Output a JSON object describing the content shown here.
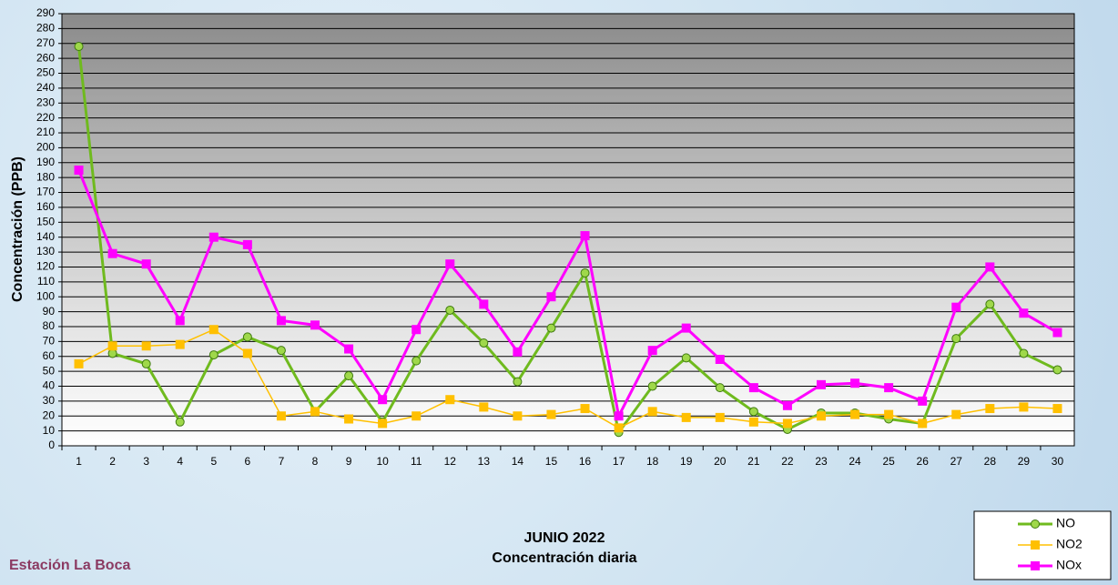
{
  "chart_data": {
    "type": "line",
    "title": "JUNIO 2022",
    "subtitle": "Concentración diaria",
    "station": "Estación La Boca",
    "y_label": "Concentración  (PPB)",
    "categories": [
      "1",
      "2",
      "3",
      "4",
      "5",
      "6",
      "7",
      "8",
      "9",
      "10",
      "11",
      "12",
      "13",
      "14",
      "15",
      "16",
      "17",
      "18",
      "19",
      "20",
      "21",
      "22",
      "23",
      "24",
      "25",
      "26",
      "27",
      "28",
      "29",
      "30"
    ],
    "series": [
      {
        "name": "NO",
        "color": "#6fba1e",
        "marker": "circle",
        "values": [
          268,
          62,
          55,
          16,
          61,
          73,
          64,
          23,
          47,
          16,
          57,
          91,
          69,
          43,
          79,
          116,
          9,
          40,
          59,
          39,
          23,
          11,
          22,
          22,
          18,
          15,
          72,
          95,
          62,
          51
        ]
      },
      {
        "name": "NO2",
        "color": "#ffc000",
        "marker": "square",
        "values": [
          55,
          67,
          67,
          68,
          78,
          62,
          20,
          23,
          18,
          15,
          20,
          31,
          26,
          20,
          21,
          25,
          12,
          23,
          19,
          19,
          16,
          15,
          20,
          21,
          21,
          15,
          21,
          25,
          26,
          25
        ]
      },
      {
        "name": "NOx",
        "color": "#ff00ff",
        "marker": "square",
        "values": [
          185,
          129,
          122,
          84,
          140,
          135,
          84,
          81,
          65,
          31,
          78,
          122,
          95,
          63,
          100,
          141,
          20,
          64,
          79,
          58,
          39,
          27,
          41,
          42,
          39,
          30,
          93,
          120,
          89,
          76
        ]
      }
    ],
    "ylim": [
      0,
      290
    ],
    "yticks": [
      0,
      10,
      20,
      30,
      40,
      50,
      60,
      70,
      80,
      90,
      100,
      110,
      120,
      130,
      140,
      150,
      160,
      170,
      180,
      190,
      200,
      210,
      220,
      230,
      240,
      250,
      260,
      270,
      280,
      290
    ],
    "grid": true,
    "legend": "bottom-right"
  }
}
